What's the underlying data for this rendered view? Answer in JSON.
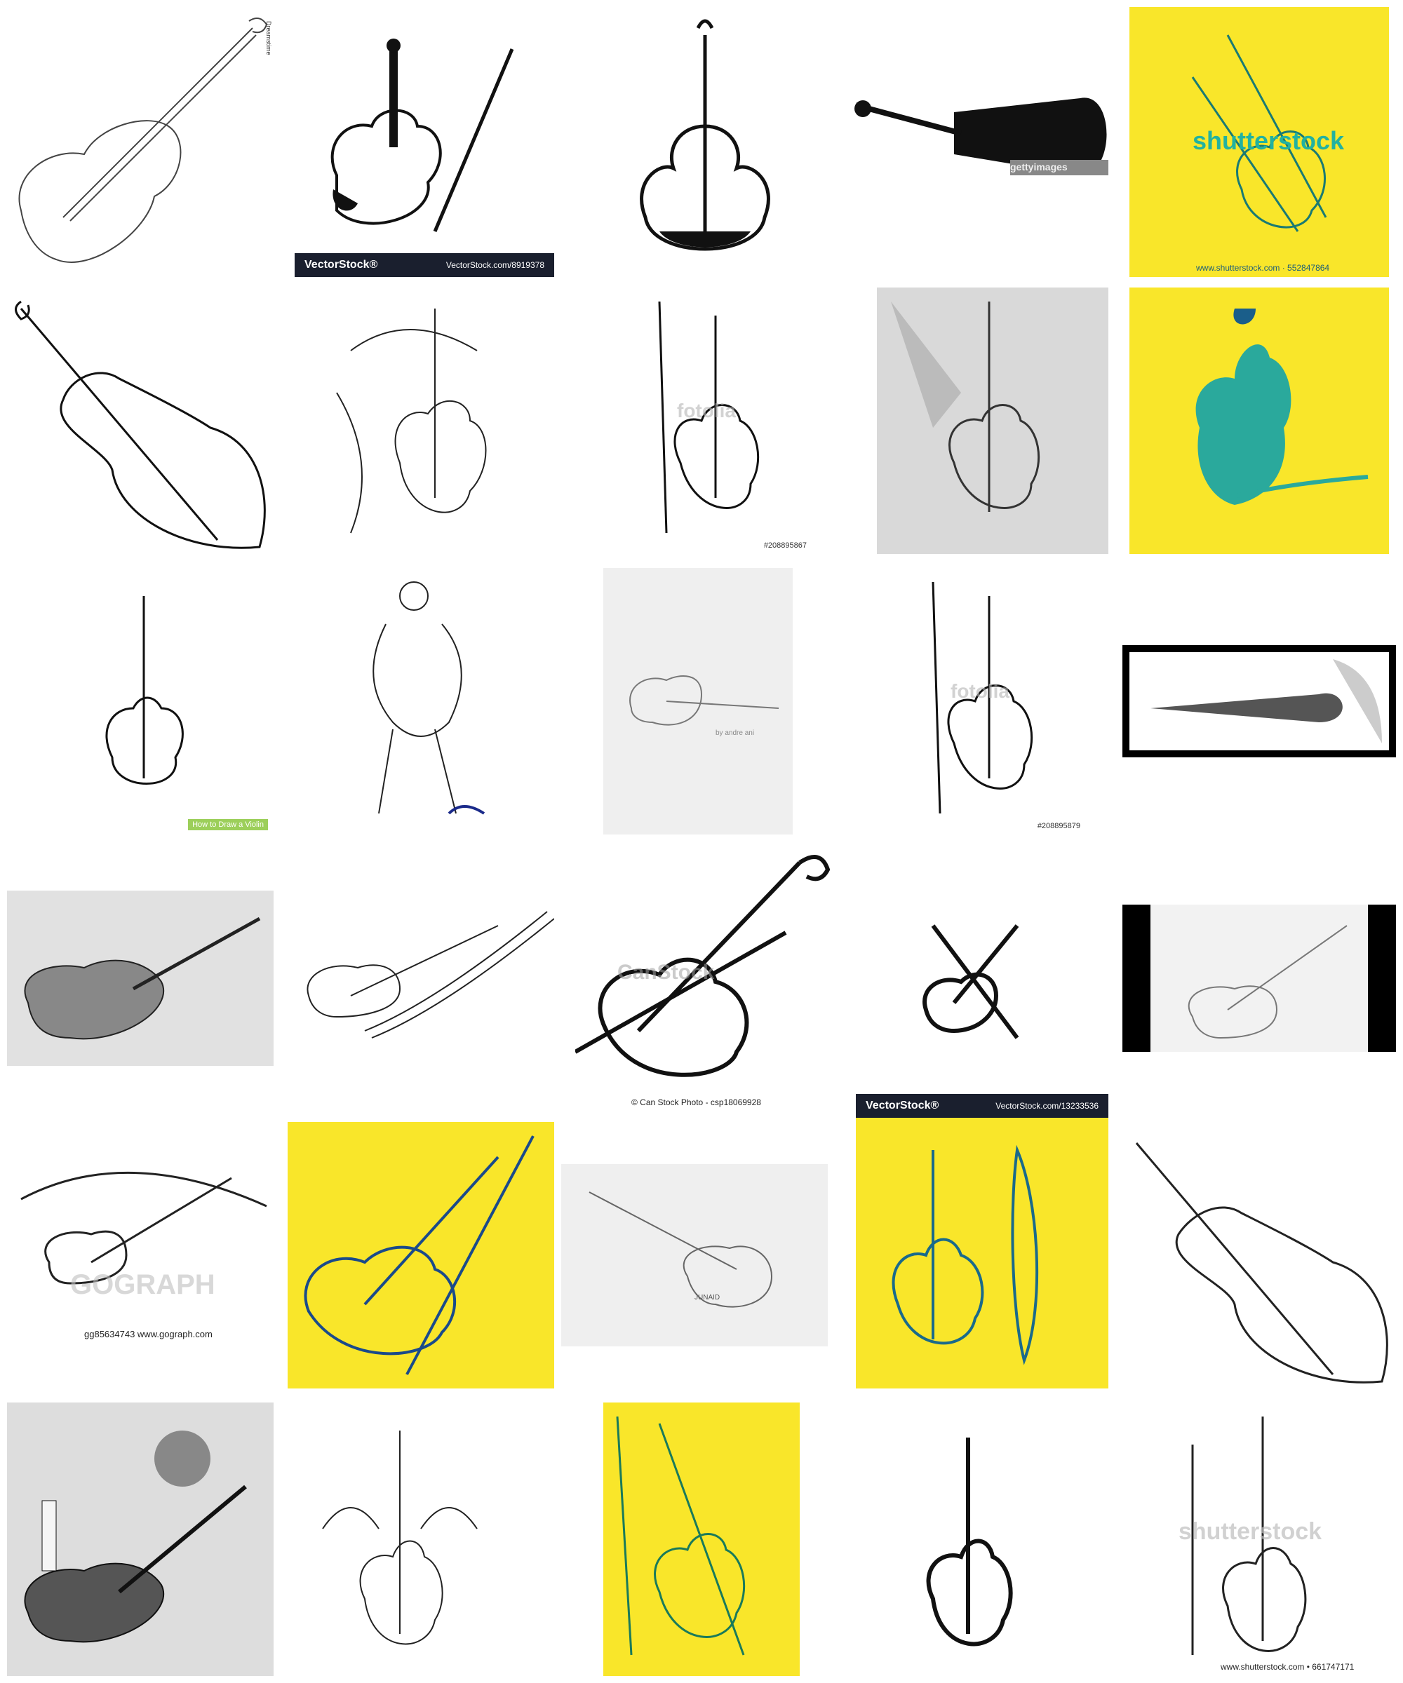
{
  "tiles": [
    {
      "name": "violin-outline-drawing",
      "bg": "#ffffff"
    },
    {
      "name": "violin-with-bow-vectorstock",
      "bg": "#ffffff",
      "bar_logo": "VectorStock®",
      "bar_url": "VectorStock.com/8919378"
    },
    {
      "name": "sketch-upright-violin",
      "bg": "#ffffff"
    },
    {
      "name": "violin-silhouette-gettyimages",
      "bg": "#ffffff",
      "watermark": "gettyimages"
    },
    {
      "name": "shutterstock-yellow-violin",
      "bg": "#f9e62a",
      "watermark": "shutterstock",
      "caption": "www.shutterstock.com · 552847864"
    },
    {
      "name": "violin-outline-closeup",
      "bg": "#ffffff"
    },
    {
      "name": "violin-music-notes-tattoo",
      "bg": "#ffffff"
    },
    {
      "name": "fotolia-violin-bow",
      "bg": "#ffffff",
      "watermark": "fotolia",
      "id": "#208895867"
    },
    {
      "name": "pencil-violin-sketch",
      "bg": "#e8e8e8"
    },
    {
      "name": "watercolor-violin-yellow",
      "bg": "#f9e62a"
    },
    {
      "name": "how-to-draw-violin",
      "bg": "#ffffff",
      "badge": "How to Draw a Violin"
    },
    {
      "name": "cellist-sketch",
      "bg": "#ffffff"
    },
    {
      "name": "violin-paper-sketch",
      "bg": "#efefef",
      "signature": "by andre ani"
    },
    {
      "name": "fotolia-violin-bow-2",
      "bg": "#ffffff",
      "watermark": "fotolia",
      "id": "#208895879"
    },
    {
      "name": "violinist-framed-drawing",
      "bg": "#ffffff"
    },
    {
      "name": "realistic-violin-pencil",
      "bg": "#e8e8e8"
    },
    {
      "name": "violin-music-staff",
      "bg": "#ffffff"
    },
    {
      "name": "canstock-violin",
      "bg": "#ffffff",
      "watermark": "CanStock",
      "caption": "© Can Stock Photo - csp18069928"
    },
    {
      "name": "violin-icon-cross-bow",
      "bg": "#ffffff"
    },
    {
      "name": "violin-scan-black-borders",
      "bg": "#000000"
    },
    {
      "name": "gograph-violin",
      "bg": "#ffffff",
      "watermark": "GOGRAPH",
      "caption": "gg85634743  www.gograph.com"
    },
    {
      "name": "yellow-violin-bow-sketch",
      "bg": "#f9e62a"
    },
    {
      "name": "violin-music-notes-junaid",
      "bg": "#efefef",
      "signature": "JUNAID"
    },
    {
      "name": "vectorstock-violin-front-side",
      "bg": "#f9e62a",
      "bar_logo": "VectorStock®",
      "bar_url": "VectorStock.com/13233536"
    },
    {
      "name": "violin-outline-2",
      "bg": "#ffffff"
    },
    {
      "name": "violin-candle-still-life",
      "bg": "#e8e8e8"
    },
    {
      "name": "violin-floral-ornament",
      "bg": "#ffffff"
    },
    {
      "name": "yellow-violin-green-lines",
      "bg": "#f9e62a"
    },
    {
      "name": "bold-violin-sketch",
      "bg": "#ffffff"
    },
    {
      "name": "shutterstock-violin-bow",
      "bg": "#ffffff",
      "watermark": "shutterstock",
      "caption": "www.shutterstock.com • 661747171"
    }
  ]
}
